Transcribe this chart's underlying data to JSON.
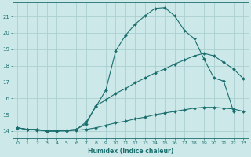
{
  "xlabel": "Humidex (Indice chaleur)",
  "bg_color": "#cce8e8",
  "grid_color": "#aad0d0",
  "line_color": "#1a6e6e",
  "xlim": [
    -0.5,
    23.5
  ],
  "ylim": [
    13.55,
    21.85
  ],
  "xticks": [
    0,
    1,
    2,
    3,
    4,
    5,
    6,
    7,
    8,
    9,
    10,
    11,
    12,
    13,
    14,
    15,
    16,
    17,
    18,
    19,
    20,
    21,
    22,
    23
  ],
  "yticks": [
    14,
    15,
    16,
    17,
    18,
    19,
    20,
    21
  ],
  "line1_x": [
    0,
    1,
    2,
    3,
    4,
    5,
    6,
    7,
    8,
    9,
    10,
    11,
    12,
    13,
    14,
    15,
    16,
    17,
    18,
    19,
    20,
    21,
    22,
    23
  ],
  "line1_y": [
    14.2,
    14.1,
    14.1,
    14.0,
    14.0,
    14.0,
    14.05,
    14.1,
    14.2,
    14.35,
    14.5,
    14.6,
    14.75,
    14.85,
    15.0,
    15.1,
    15.2,
    15.3,
    15.4,
    15.45,
    15.45,
    15.4,
    15.35,
    15.2
  ],
  "line2_x": [
    0,
    1,
    2,
    3,
    4,
    5,
    6,
    7,
    8,
    9,
    10,
    11,
    12,
    13,
    14,
    15,
    16,
    17,
    18,
    19,
    20,
    21,
    22,
    23
  ],
  "line2_y": [
    14.2,
    14.1,
    14.1,
    14.0,
    14.0,
    14.05,
    14.1,
    14.45,
    15.55,
    15.9,
    16.3,
    16.6,
    16.95,
    17.25,
    17.55,
    17.8,
    18.1,
    18.35,
    18.6,
    18.75,
    18.6,
    18.2,
    17.8,
    17.2
  ],
  "line3_x": [
    0,
    1,
    2,
    3,
    4,
    5,
    6,
    7,
    8,
    9,
    10,
    11,
    12,
    13,
    14,
    15,
    16,
    17,
    18,
    19,
    20,
    21,
    22,
    23
  ],
  "line3_y": [
    14.2,
    14.1,
    14.05,
    14.0,
    14.0,
    14.05,
    14.1,
    14.55,
    15.5,
    16.5,
    18.9,
    19.85,
    20.55,
    21.05,
    21.5,
    21.55,
    21.05,
    20.15,
    19.65,
    18.4,
    17.25,
    17.05,
    15.2,
    null
  ]
}
